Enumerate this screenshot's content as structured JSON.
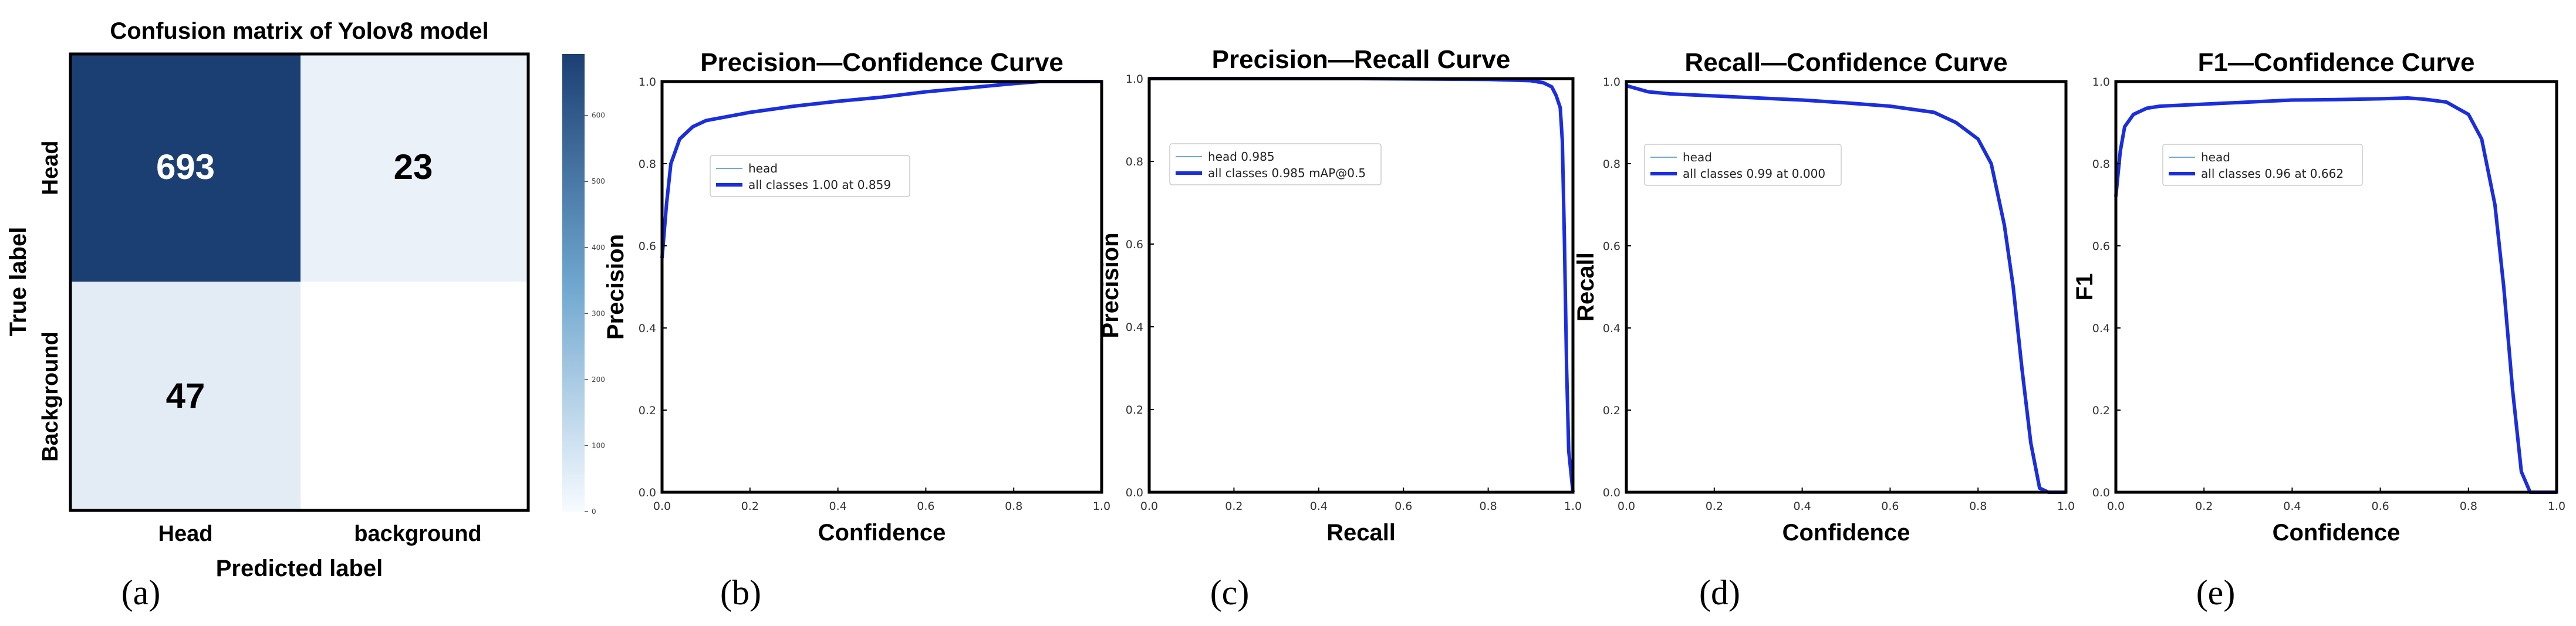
{
  "colors": {
    "cm_dark": "#1c3f73",
    "cm_light": "#e3ecf5",
    "cm_mid_light": "#eaf1f8",
    "cm_white": "#ffffff",
    "curve_head": "#6fa8dc",
    "curve_all": "#1a2ee0",
    "axis": "#000000",
    "colorbar_top": "#1c3f73",
    "colorbar_bottom": "#f7fbff"
  },
  "chart_data": [
    {
      "type": "heatmap",
      "title": "Confusion matrix of Yolov8 model",
      "xlabel": "Predicted label",
      "ylabel": "True label",
      "x_categories": [
        "Head",
        "background"
      ],
      "y_categories": [
        "Head",
        "Background"
      ],
      "values": [
        [
          693,
          23
        ],
        [
          47,
          null
        ]
      ],
      "value_labels": [
        [
          "693",
          "23"
        ],
        [
          "47",
          ""
        ]
      ],
      "colorbar": {
        "range": [
          0,
          693
        ],
        "ticks": [
          "0",
          "100",
          "200",
          "300",
          "400",
          "500",
          "600"
        ]
      },
      "caption": "(a)"
    },
    {
      "type": "line",
      "title": "Precision—Confidence Curve",
      "xlabel": "Confidence",
      "ylabel": "Precision",
      "xlim": [
        0,
        1
      ],
      "ylim": [
        0,
        1
      ],
      "xticks": [
        "0.0",
        "0.2",
        "0.4",
        "0.6",
        "0.8",
        "1.0"
      ],
      "yticks": [
        "0.0",
        "0.2",
        "0.4",
        "0.6",
        "0.8",
        "1.0"
      ],
      "legend_position": "upper-left",
      "series": [
        {
          "name": "head",
          "x": [
            0,
            0.01,
            0.02,
            0.04,
            0.07,
            0.1,
            0.2,
            0.3,
            0.4,
            0.5,
            0.6,
            0.7,
            0.8,
            0.859,
            0.9,
            1.0
          ],
          "y": [
            0.57,
            0.7,
            0.8,
            0.86,
            0.89,
            0.905,
            0.925,
            0.94,
            0.952,
            0.962,
            0.975,
            0.985,
            0.995,
            1.0,
            1.0,
            1.0
          ]
        },
        {
          "name": "all classes 1.00 at 0.859",
          "x": [
            0,
            0.01,
            0.02,
            0.04,
            0.07,
            0.1,
            0.2,
            0.3,
            0.4,
            0.5,
            0.6,
            0.7,
            0.8,
            0.859,
            0.9,
            1.0
          ],
          "y": [
            0.57,
            0.7,
            0.8,
            0.86,
            0.89,
            0.905,
            0.925,
            0.94,
            0.952,
            0.962,
            0.975,
            0.985,
            0.995,
            1.0,
            1.0,
            1.0
          ]
        }
      ],
      "caption": "(b)"
    },
    {
      "type": "line",
      "title": "Precision—Recall Curve",
      "xlabel": "Recall",
      "ylabel": "Precision",
      "xlim": [
        0,
        1
      ],
      "ylim": [
        0,
        1
      ],
      "xticks": [
        "0.0",
        "0.2",
        "0.4",
        "0.6",
        "0.8",
        "1.0"
      ],
      "yticks": [
        "0.0",
        "0.2",
        "0.4",
        "0.6",
        "0.8",
        "1.0"
      ],
      "legend_position": "upper-left",
      "series": [
        {
          "name": "head 0.985",
          "x": [
            0,
            0.2,
            0.5,
            0.8,
            0.9,
            0.93,
            0.95,
            0.96,
            0.97,
            0.975,
            0.98,
            0.985,
            0.99,
            1.0
          ],
          "y": [
            1.0,
            1.0,
            1.0,
            0.998,
            0.995,
            0.99,
            0.98,
            0.96,
            0.93,
            0.85,
            0.6,
            0.3,
            0.1,
            0.0
          ]
        },
        {
          "name": "all classes 0.985 mAP@0.5",
          "x": [
            0,
            0.2,
            0.5,
            0.8,
            0.9,
            0.93,
            0.95,
            0.96,
            0.97,
            0.975,
            0.98,
            0.985,
            0.99,
            1.0
          ],
          "y": [
            1.0,
            1.0,
            1.0,
            0.998,
            0.995,
            0.99,
            0.98,
            0.96,
            0.93,
            0.85,
            0.6,
            0.3,
            0.1,
            0.0
          ]
        }
      ],
      "caption": "(c)"
    },
    {
      "type": "line",
      "title": "Recall—Confidence Curve",
      "xlabel": "Confidence",
      "ylabel": "Recall",
      "xlim": [
        0,
        1
      ],
      "ylim": [
        0,
        1
      ],
      "xticks": [
        "0.0",
        "0.2",
        "0.4",
        "0.6",
        "0.8",
        "1.0"
      ],
      "yticks": [
        "0.0",
        "0.2",
        "0.4",
        "0.6",
        "0.8",
        "1.0"
      ],
      "legend_position": "upper-left",
      "series": [
        {
          "name": "head",
          "x": [
            0,
            0.05,
            0.1,
            0.2,
            0.3,
            0.4,
            0.5,
            0.6,
            0.7,
            0.75,
            0.8,
            0.83,
            0.86,
            0.88,
            0.9,
            0.92,
            0.94,
            0.96,
            1.0
          ],
          "y": [
            0.99,
            0.975,
            0.97,
            0.965,
            0.96,
            0.955,
            0.948,
            0.94,
            0.925,
            0.9,
            0.86,
            0.8,
            0.65,
            0.5,
            0.3,
            0.12,
            0.01,
            0.0,
            0.0
          ]
        },
        {
          "name": "all classes 0.99 at 0.000",
          "x": [
            0,
            0.05,
            0.1,
            0.2,
            0.3,
            0.4,
            0.5,
            0.6,
            0.7,
            0.75,
            0.8,
            0.83,
            0.86,
            0.88,
            0.9,
            0.92,
            0.94,
            0.96,
            1.0
          ],
          "y": [
            0.99,
            0.975,
            0.97,
            0.965,
            0.96,
            0.955,
            0.948,
            0.94,
            0.925,
            0.9,
            0.86,
            0.8,
            0.65,
            0.5,
            0.3,
            0.12,
            0.01,
            0.0,
            0.0
          ]
        }
      ],
      "caption": "(d)"
    },
    {
      "type": "line",
      "title": "F1—Confidence Curve",
      "xlabel": "Confidence",
      "ylabel": "F1",
      "xlim": [
        0,
        1
      ],
      "ylim": [
        0,
        1
      ],
      "xticks": [
        "0.0",
        "0.2",
        "0.4",
        "0.6",
        "0.8",
        "1.0"
      ],
      "yticks": [
        "0.0",
        "0.2",
        "0.4",
        "0.6",
        "0.8",
        "1.0"
      ],
      "legend_position": "upper-left",
      "series": [
        {
          "name": "head",
          "x": [
            0,
            0.01,
            0.02,
            0.04,
            0.07,
            0.1,
            0.2,
            0.3,
            0.4,
            0.5,
            0.6,
            0.662,
            0.7,
            0.75,
            0.8,
            0.83,
            0.86,
            0.88,
            0.9,
            0.92,
            0.94,
            1.0
          ],
          "y": [
            0.72,
            0.83,
            0.89,
            0.92,
            0.935,
            0.94,
            0.945,
            0.95,
            0.955,
            0.956,
            0.958,
            0.96,
            0.957,
            0.95,
            0.92,
            0.86,
            0.7,
            0.5,
            0.25,
            0.05,
            0.0,
            0.0
          ]
        },
        {
          "name": "all classes 0.96 at 0.662",
          "x": [
            0,
            0.01,
            0.02,
            0.04,
            0.07,
            0.1,
            0.2,
            0.3,
            0.4,
            0.5,
            0.6,
            0.662,
            0.7,
            0.75,
            0.8,
            0.83,
            0.86,
            0.88,
            0.9,
            0.92,
            0.94,
            1.0
          ],
          "y": [
            0.72,
            0.83,
            0.89,
            0.92,
            0.935,
            0.94,
            0.945,
            0.95,
            0.955,
            0.956,
            0.958,
            0.96,
            0.957,
            0.95,
            0.92,
            0.86,
            0.7,
            0.5,
            0.25,
            0.05,
            0.0,
            0.0
          ]
        }
      ],
      "caption": "(e)"
    }
  ]
}
